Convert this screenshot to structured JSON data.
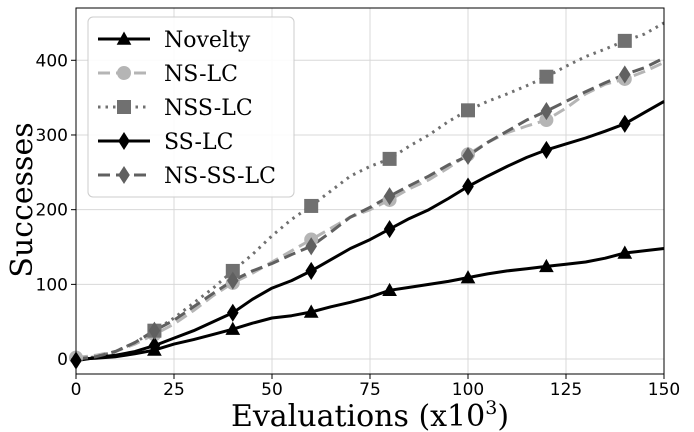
{
  "chart_data": {
    "type": "line",
    "title": "",
    "xlabel": "Evaluations (x10^3)",
    "xlabel_parts": [
      "Evaluations (x10",
      "3",
      ")"
    ],
    "ylabel": "Successes",
    "xlim": [
      0,
      150
    ],
    "ylim": [
      -20,
      470
    ],
    "xticks": [
      0,
      25,
      50,
      75,
      100,
      125,
      150
    ],
    "yticks": [
      0,
      100,
      200,
      300,
      400
    ],
    "grid": true,
    "legend_position": "top-left",
    "series": [
      {
        "name": "Novelty",
        "color": "#000000",
        "dash": "solid",
        "marker": "triangle",
        "x": [
          0,
          5,
          10,
          15,
          20,
          25,
          30,
          35,
          40,
          45,
          50,
          55,
          60,
          65,
          70,
          75,
          80,
          85,
          90,
          95,
          100,
          105,
          110,
          115,
          120,
          125,
          130,
          135,
          140,
          145,
          150
        ],
        "y": [
          0,
          1,
          3,
          7,
          12,
          20,
          26,
          33,
          40,
          48,
          55,
          58,
          63,
          70,
          76,
          83,
          92,
          96,
          100,
          104,
          109,
          114,
          118,
          121,
          124,
          127,
          130,
          135,
          142,
          145,
          148
        ],
        "marker_x": [
          20,
          40,
          60,
          80,
          100,
          120,
          140
        ],
        "marker_y": [
          12,
          40,
          63,
          92,
          109,
          124,
          142
        ]
      },
      {
        "name": "NS-LC",
        "color": "#b5b5b5",
        "dash": "dashed",
        "marker": "circle",
        "x": [
          0,
          5,
          10,
          15,
          20,
          25,
          30,
          35,
          40,
          45,
          50,
          55,
          60,
          65,
          70,
          75,
          80,
          85,
          90,
          95,
          100,
          105,
          110,
          115,
          120,
          125,
          130,
          135,
          140,
          145,
          150
        ],
        "y": [
          2,
          5,
          10,
          20,
          33,
          47,
          65,
          85,
          102,
          115,
          130,
          145,
          160,
          175,
          190,
          200,
          213,
          228,
          240,
          256,
          274,
          290,
          303,
          312,
          320,
          336,
          355,
          368,
          375,
          385,
          397
        ],
        "marker_x": [
          0,
          20,
          40,
          60,
          80,
          100,
          120,
          140
        ],
        "marker_y": [
          2,
          33,
          102,
          160,
          213,
          274,
          320,
          375
        ]
      },
      {
        "name": "NSS-LC",
        "color": "#707070",
        "dash": "dotted",
        "marker": "square",
        "x": [
          0,
          5,
          10,
          15,
          20,
          25,
          30,
          35,
          40,
          45,
          50,
          55,
          60,
          65,
          70,
          75,
          80,
          85,
          90,
          95,
          100,
          105,
          110,
          115,
          120,
          125,
          130,
          135,
          140,
          145,
          150
        ],
        "y": [
          0,
          3,
          10,
          22,
          38,
          55,
          75,
          95,
          118,
          140,
          165,
          187,
          205,
          225,
          245,
          258,
          268,
          285,
          300,
          318,
          333,
          345,
          355,
          366,
          378,
          392,
          405,
          415,
          426,
          435,
          450
        ],
        "marker_x": [
          20,
          40,
          60,
          80,
          100,
          120,
          140
        ],
        "marker_y": [
          38,
          118,
          205,
          268,
          333,
          378,
          426
        ]
      },
      {
        "name": "SS-LC",
        "color": "#000000",
        "dash": "solid",
        "marker": "diamond",
        "x": [
          0,
          5,
          10,
          15,
          20,
          25,
          30,
          35,
          40,
          45,
          50,
          55,
          60,
          65,
          70,
          75,
          80,
          85,
          90,
          95,
          100,
          105,
          110,
          115,
          120,
          125,
          130,
          135,
          140,
          145,
          150
        ],
        "y": [
          -2,
          2,
          5,
          10,
          18,
          28,
          38,
          50,
          62,
          80,
          95,
          105,
          118,
          133,
          148,
          160,
          174,
          188,
          200,
          215,
          231,
          245,
          258,
          270,
          280,
          288,
          296,
          305,
          315,
          330,
          345
        ],
        "marker_x": [
          0,
          20,
          40,
          60,
          80,
          100,
          120,
          140
        ],
        "marker_y": [
          -2,
          18,
          62,
          118,
          174,
          231,
          280,
          315
        ]
      },
      {
        "name": "NS-SS-LC",
        "color": "#606060",
        "dash": "dashed",
        "marker": "diamond",
        "x": [
          0,
          5,
          10,
          15,
          20,
          25,
          30,
          35,
          40,
          45,
          50,
          55,
          60,
          65,
          70,
          75,
          80,
          85,
          90,
          95,
          100,
          105,
          110,
          115,
          120,
          125,
          130,
          135,
          140,
          145,
          150
        ],
        "y": [
          0,
          3,
          10,
          22,
          38,
          52,
          70,
          88,
          105,
          118,
          128,
          140,
          151,
          170,
          190,
          203,
          218,
          232,
          245,
          260,
          272,
          290,
          305,
          320,
          332,
          345,
          358,
          370,
          381,
          390,
          403
        ],
        "marker_x": [
          20,
          40,
          60,
          80,
          100,
          120,
          140
        ],
        "marker_y": [
          38,
          105,
          151,
          218,
          272,
          332,
          381
        ]
      }
    ]
  }
}
